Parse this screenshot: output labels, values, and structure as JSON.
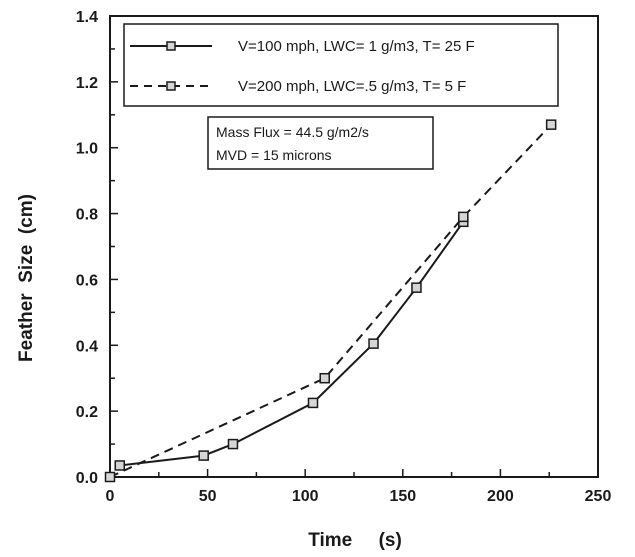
{
  "chart_data": {
    "type": "line",
    "xlabel": "Time     (s)",
    "ylabel": "Feather  Size  (cm)",
    "xlim": [
      0,
      250
    ],
    "ylim": [
      0,
      1.4
    ],
    "x_ticks": [
      "0",
      "50",
      "100",
      "150",
      "200",
      "250"
    ],
    "y_ticks": [
      "0.0",
      "0.2",
      "0.4",
      "0.6",
      "0.8",
      "1.0",
      "1.2",
      "1.4"
    ],
    "grid": false,
    "legend_position": "top",
    "series": [
      {
        "name": "V=100 mph, LWC= 1 g/m3,  T= 25 F",
        "line_style": "solid",
        "marker": "open-square",
        "x": [
          5,
          48,
          63,
          104,
          135,
          157,
          181
        ],
        "y": [
          0.035,
          0.065,
          0.1,
          0.225,
          0.405,
          0.575,
          0.775
        ]
      },
      {
        "name": "V=200 mph, LWC=.5 g/m3, T= 5 F",
        "line_style": "dashed",
        "marker": "open-square",
        "x": [
          0,
          110,
          181,
          226
        ],
        "y": [
          0.0,
          0.3,
          0.79,
          1.07
        ]
      }
    ],
    "annotation": {
      "lines": [
        "Mass Flux = 44.5 g/m2/s",
        "MVD = 15 microns"
      ]
    },
    "colors": {
      "line": "#1a1a1a",
      "marker_fill": "#d6d6d6"
    }
  }
}
